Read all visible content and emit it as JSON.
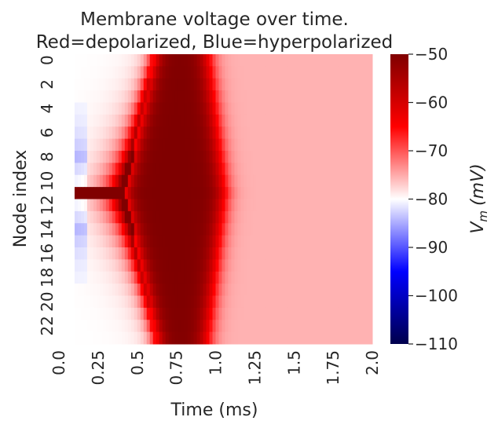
{
  "chart_data": {
    "type": "heatmap",
    "title_line1": "Membrane voltage over time.",
    "title_line2": "Red=depolarized, Blue=hyperpolarized",
    "xlabel": "Time (ms)",
    "ylabel": "Node index",
    "x_ticks": [
      "0.0",
      "0.25",
      "0.5",
      "0.75",
      "1.0",
      "1.25",
      "1.5",
      "1.75",
      "2.0"
    ],
    "y_ticks": [
      "0",
      "2",
      "4",
      "6",
      "8",
      "10",
      "12",
      "14",
      "16",
      "18",
      "20",
      "22"
    ],
    "xlim": [
      0.0,
      2.0
    ],
    "n_nodes": 24,
    "stim_node": 11,
    "stim_time_ms": 0.1,
    "colorbar": {
      "label_main": "V",
      "label_sub": "m",
      "label_unit": "(mV)",
      "vmin": -110,
      "vmax": -50,
      "ticks": [
        "−50",
        "−60",
        "−70",
        "−80",
        "−90",
        "−100",
        "−110"
      ],
      "tick_values": [
        -50,
        -60,
        -70,
        -80,
        -90,
        -100,
        -110
      ]
    },
    "colormap": "seismic",
    "colors": {
      "low": "#00004c",
      "mid_low": "#0000ff",
      "center": "#ffffff",
      "mid_high": "#ff0000",
      "high": "#800000"
    },
    "rest_mV": -80,
    "plateau_mV": -50,
    "late_mV": -75.5
  }
}
